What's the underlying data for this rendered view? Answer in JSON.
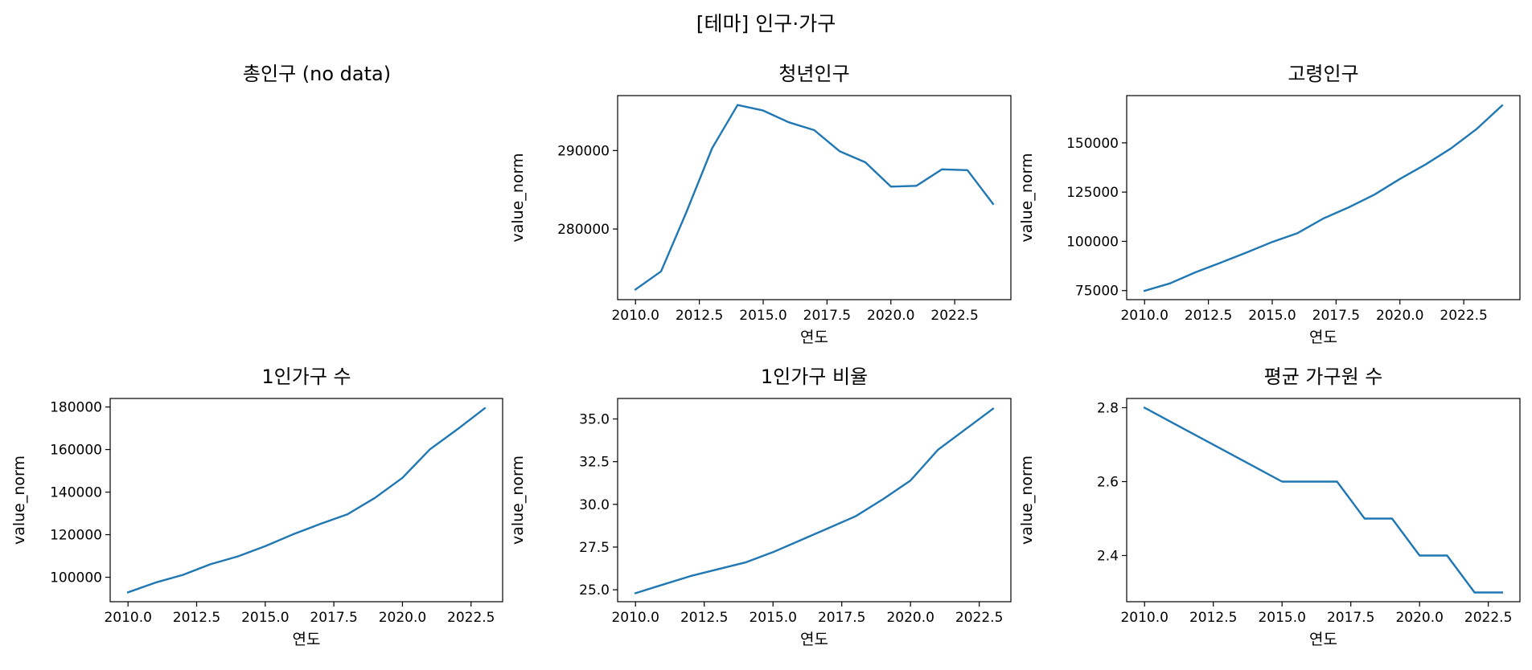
{
  "figure": {
    "title": "[테마] 인구·가구"
  },
  "colors": {
    "line": "#1f77b4",
    "axis": "#000000"
  },
  "chart_data": [
    {
      "type": "line",
      "title": "총인구 (no data)",
      "empty": true
    },
    {
      "type": "line",
      "title": "청년인구",
      "xlabel": "연도",
      "ylabel": "value_norm",
      "xlim": [
        2009.3,
        2024.7
      ],
      "ylim": [
        271000,
        297000
      ],
      "xticks": [
        2010.0,
        2012.5,
        2015.0,
        2017.5,
        2020.0,
        2022.5
      ],
      "xtick_labels": [
        "2010.0",
        "2012.5",
        "2015.0",
        "2017.5",
        "2020.0",
        "2022.5"
      ],
      "yticks": [
        280000,
        290000
      ],
      "ytick_labels": [
        "280000",
        "290000"
      ],
      "x": [
        2010,
        2011,
        2012,
        2013,
        2014,
        2015,
        2016,
        2017,
        2018,
        2019,
        2020,
        2021,
        2022,
        2023,
        2024
      ],
      "y": [
        272300,
        274600,
        282200,
        290300,
        295800,
        295100,
        293600,
        292600,
        289900,
        288500,
        285400,
        285500,
        287600,
        287500,
        283200
      ]
    },
    {
      "type": "line",
      "title": "고령인구",
      "xlabel": "연도",
      "ylabel": "value_norm",
      "xlim": [
        2009.3,
        2024.7
      ],
      "ylim": [
        70400,
        174000
      ],
      "xticks": [
        2010.0,
        2012.5,
        2015.0,
        2017.5,
        2020.0,
        2022.5
      ],
      "xtick_labels": [
        "2010.0",
        "2012.5",
        "2015.0",
        "2017.5",
        "2020.0",
        "2022.5"
      ],
      "yticks": [
        75000,
        100000,
        125000,
        150000
      ],
      "ytick_labels": [
        "75000",
        "100000",
        "125000",
        "150000"
      ],
      "x": [
        2010,
        2011,
        2012,
        2013,
        2014,
        2015,
        2016,
        2017,
        2018,
        2019,
        2020,
        2021,
        2022,
        2023,
        2024
      ],
      "y": [
        74900,
        78700,
        84300,
        89300,
        94400,
        99700,
        104200,
        111600,
        117300,
        123700,
        131700,
        139000,
        147200,
        157000,
        169000
      ]
    },
    {
      "type": "line",
      "title": "1인가구 수",
      "xlabel": "연도",
      "ylabel": "value_norm",
      "xlim": [
        2009.35,
        2023.65
      ],
      "ylim": [
        88500,
        184000
      ],
      "xticks": [
        2010.0,
        2012.5,
        2015.0,
        2017.5,
        2020.0,
        2022.5
      ],
      "xtick_labels": [
        "2010.0",
        "2012.5",
        "2015.0",
        "2017.5",
        "2020.0",
        "2022.5"
      ],
      "yticks": [
        100000,
        120000,
        140000,
        160000,
        180000
      ],
      "ytick_labels": [
        "100000",
        "120000",
        "140000",
        "160000",
        "180000"
      ],
      "x": [
        2010,
        2011,
        2012,
        2013,
        2014,
        2015,
        2016,
        2017,
        2018,
        2019,
        2020,
        2021,
        2022,
        2023
      ],
      "y": [
        92900,
        97500,
        101100,
        106100,
        109800,
        114600,
        120100,
        125000,
        129600,
        137300,
        146700,
        160100,
        169500,
        179400
      ]
    },
    {
      "type": "line",
      "title": "1인가구 비율",
      "xlabel": "연도",
      "ylabel": "value_norm",
      "xlim": [
        2009.35,
        2023.65
      ],
      "ylim": [
        24.3,
        36.2
      ],
      "xticks": [
        2010.0,
        2012.5,
        2015.0,
        2017.5,
        2020.0,
        2022.5
      ],
      "xtick_labels": [
        "2010.0",
        "2012.5",
        "2015.0",
        "2017.5",
        "2020.0",
        "2022.5"
      ],
      "yticks": [
        25.0,
        27.5,
        30.0,
        32.5,
        35.0
      ],
      "ytick_labels": [
        "25.0",
        "27.5",
        "30.0",
        "32.5",
        "35.0"
      ],
      "x": [
        2010,
        2011,
        2012,
        2013,
        2014,
        2015,
        2016,
        2017,
        2018,
        2019,
        2020,
        2021,
        2022,
        2023
      ],
      "y": [
        24.8,
        25.3,
        25.8,
        26.2,
        26.6,
        27.2,
        27.9,
        28.6,
        29.3,
        30.3,
        31.4,
        33.2,
        34.4,
        35.6
      ]
    },
    {
      "type": "line",
      "title": "평균 가구원 수",
      "xlabel": "연도",
      "ylabel": "value_norm",
      "xlim": [
        2009.35,
        2023.65
      ],
      "ylim": [
        2.275,
        2.825
      ],
      "xticks": [
        2010.0,
        2012.5,
        2015.0,
        2017.5,
        2020.0,
        2022.5
      ],
      "xtick_labels": [
        "2010.0",
        "2012.5",
        "2015.0",
        "2017.5",
        "2020.0",
        "2022.5"
      ],
      "yticks": [
        2.4,
        2.6,
        2.8
      ],
      "ytick_labels": [
        "2.4",
        "2.6",
        "2.8"
      ],
      "x": [
        2010,
        2011,
        2012,
        2013,
        2014,
        2015,
        2016,
        2017,
        2018,
        2019,
        2020,
        2021,
        2022,
        2023
      ],
      "y": [
        2.8,
        2.76,
        2.72,
        2.68,
        2.64,
        2.6,
        2.6,
        2.6,
        2.5,
        2.5,
        2.4,
        2.4,
        2.3,
        2.3
      ]
    }
  ]
}
